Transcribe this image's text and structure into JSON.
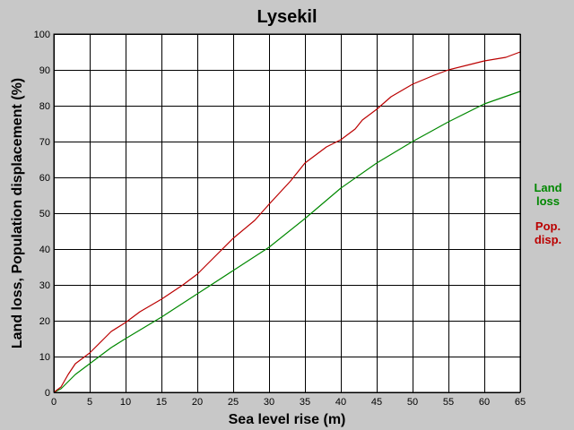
{
  "chart_data": {
    "type": "line",
    "title": "Lysekil",
    "xlabel": "Sea level rise (m)",
    "ylabel": "Land loss, Population displacement (%)",
    "xlim": [
      0,
      65
    ],
    "ylim": [
      0,
      100
    ],
    "x_ticks": [
      "0",
      "5",
      "10",
      "15",
      "20",
      "25",
      "30",
      "35",
      "40",
      "45",
      "50",
      "55",
      "60",
      "65"
    ],
    "y_ticks": [
      "0",
      "10",
      "20",
      "30",
      "40",
      "50",
      "60",
      "70",
      "80",
      "90",
      "100"
    ],
    "grid": true,
    "legend_position": "right",
    "series": [
      {
        "name": "Land loss",
        "color": "#008800",
        "x": [
          0,
          1,
          2,
          3,
          5,
          8,
          10,
          15,
          20,
          25,
          30,
          35,
          40,
          45,
          50,
          55,
          60,
          65
        ],
        "values": [
          0,
          1,
          3,
          5,
          8,
          12.5,
          15,
          21,
          27.5,
          34,
          40.5,
          48.5,
          57,
          64,
          70,
          75.5,
          80.5,
          84
        ]
      },
      {
        "name": "Pop. disp.",
        "color": "#bb0000",
        "x": [
          0,
          1,
          2,
          3,
          5,
          7,
          8,
          10,
          12,
          15,
          18,
          20,
          22,
          25,
          28,
          30,
          33,
          35,
          38,
          40,
          42,
          43,
          45,
          47,
          50,
          53,
          55,
          58,
          60,
          63,
          65
        ],
        "values": [
          0,
          1.5,
          5,
          8,
          11,
          15,
          17,
          19.5,
          22.5,
          26,
          30,
          33,
          37,
          43,
          48,
          52.5,
          59,
          64,
          68.5,
          70.5,
          73.5,
          76,
          79,
          82.5,
          86,
          88.5,
          90,
          91.5,
          92.5,
          93.5,
          95
        ]
      }
    ],
    "legend": [
      {
        "label_line1": "Land",
        "label_line2": "loss",
        "color": "#008800"
      },
      {
        "label_line1": "Pop.",
        "label_line2": "disp.",
        "color": "#bb0000"
      }
    ]
  }
}
